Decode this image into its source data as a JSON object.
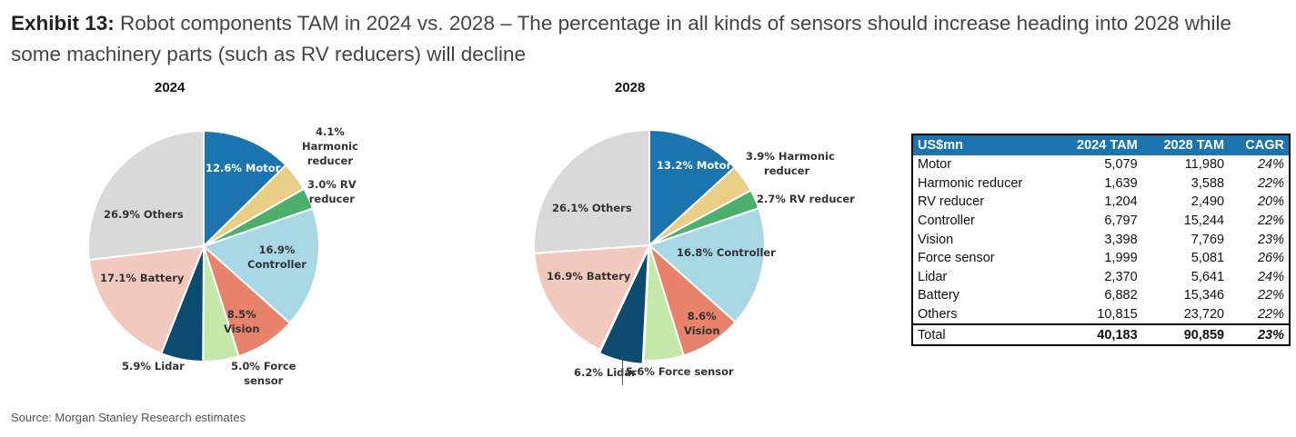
{
  "exhibit": {
    "label": "Exhibit 13:",
    "title": "Robot components TAM in 2024 vs. 2028 – The percentage in all kinds of sensors should increase heading into 2028 while some machinery parts (such as RV reducers) will decline"
  },
  "source": "Source: Morgan Stanley Research estimates",
  "colors": {
    "motor": "#1b74ad",
    "harmonic": "#e8cf85",
    "rv": "#4caf6e",
    "controller": "#a8d8e6",
    "vision": "#e8826a",
    "force": "#c4e8a8",
    "lidar": "#0d4a70",
    "battery": "#f2c9bf",
    "others": "#d9d9d9"
  },
  "chart_data": [
    {
      "type": "pie",
      "title": "2024",
      "labels": [
        "Motor",
        "Harmonic reducer",
        "RV reducer",
        "Controller",
        "Vision",
        "Force sensor",
        "Lidar",
        "Battery",
        "Others"
      ],
      "values": [
        12.6,
        4.1,
        3.0,
        16.9,
        8.5,
        5.0,
        5.9,
        17.1,
        26.9
      ],
      "slice_labels": [
        "12.6% Motor",
        "4.1% Harmonic reducer",
        "3.0% RV reducer",
        "16.9% Controller",
        "8.5% Vision",
        "5.0% Force sensor",
        "5.9% Lidar",
        "17.1% Battery",
        "26.9% Others"
      ]
    },
    {
      "type": "pie",
      "title": "2028",
      "labels": [
        "Motor",
        "Harmonic reducer",
        "RV reducer",
        "Controller",
        "Vision",
        "Force sensor",
        "Lidar",
        "Battery",
        "Others"
      ],
      "values": [
        13.2,
        3.9,
        2.7,
        16.8,
        8.6,
        5.6,
        6.2,
        16.9,
        26.1
      ],
      "slice_labels": [
        "13.2% Motor",
        "3.9% Harmonic reducer",
        "2.7% RV reducer",
        "16.8% Controller",
        "8.6% Vision",
        "5.6% Force sensor",
        "6.2% Lidar",
        "16.9% Battery",
        "26.1% Others"
      ]
    },
    {
      "type": "table",
      "columns": [
        "US$mn",
        "2024 TAM",
        "2028 TAM",
        "CAGR"
      ],
      "rows": [
        [
          "Motor",
          "5,079",
          "11,980",
          "24%"
        ],
        [
          "Harmonic reducer",
          "1,639",
          "3,588",
          "22%"
        ],
        [
          "RV reducer",
          "1,204",
          "2,490",
          "20%"
        ],
        [
          "Controller",
          "6,797",
          "15,244",
          "22%"
        ],
        [
          "Vision",
          "3,398",
          "7,769",
          "23%"
        ],
        [
          "Force sensor",
          "1,999",
          "5,081",
          "26%"
        ],
        [
          "Lidar",
          "2,370",
          "5,641",
          "24%"
        ],
        [
          "Battery",
          "6,882",
          "15,346",
          "22%"
        ],
        [
          "Others",
          "10,815",
          "23,720",
          "22%"
        ]
      ],
      "total": [
        "Total",
        "40,183",
        "90,859",
        "23%"
      ]
    }
  ]
}
